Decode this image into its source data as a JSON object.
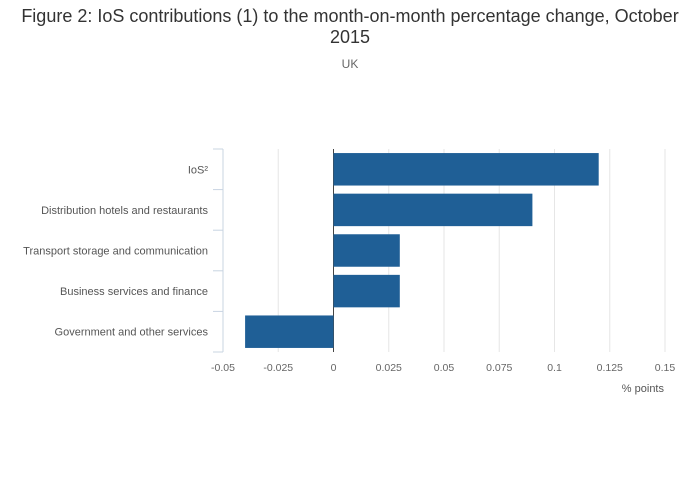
{
  "chart_data": {
    "type": "bar",
    "orientation": "horizontal",
    "title": "Figure 2: IoS contributions (1) to the month-on-month percentage change, October 2015",
    "subtitle": "UK",
    "xlabel": "% points",
    "xlim": [
      -0.05,
      0.15
    ],
    "xticks": [
      "-0.05",
      "-0.025",
      "0",
      "0.025",
      "0.05",
      "0.075",
      "0.1",
      "0.125",
      "0.15"
    ],
    "categories": [
      "IoS²",
      "Distribution hotels and restaurants",
      "Transport storage and communication",
      "Business services and finance",
      "Government and other services"
    ],
    "values": [
      0.12,
      0.09,
      0.03,
      0.03,
      -0.04
    ],
    "bar_color": "#1f5f96",
    "grid": true
  }
}
